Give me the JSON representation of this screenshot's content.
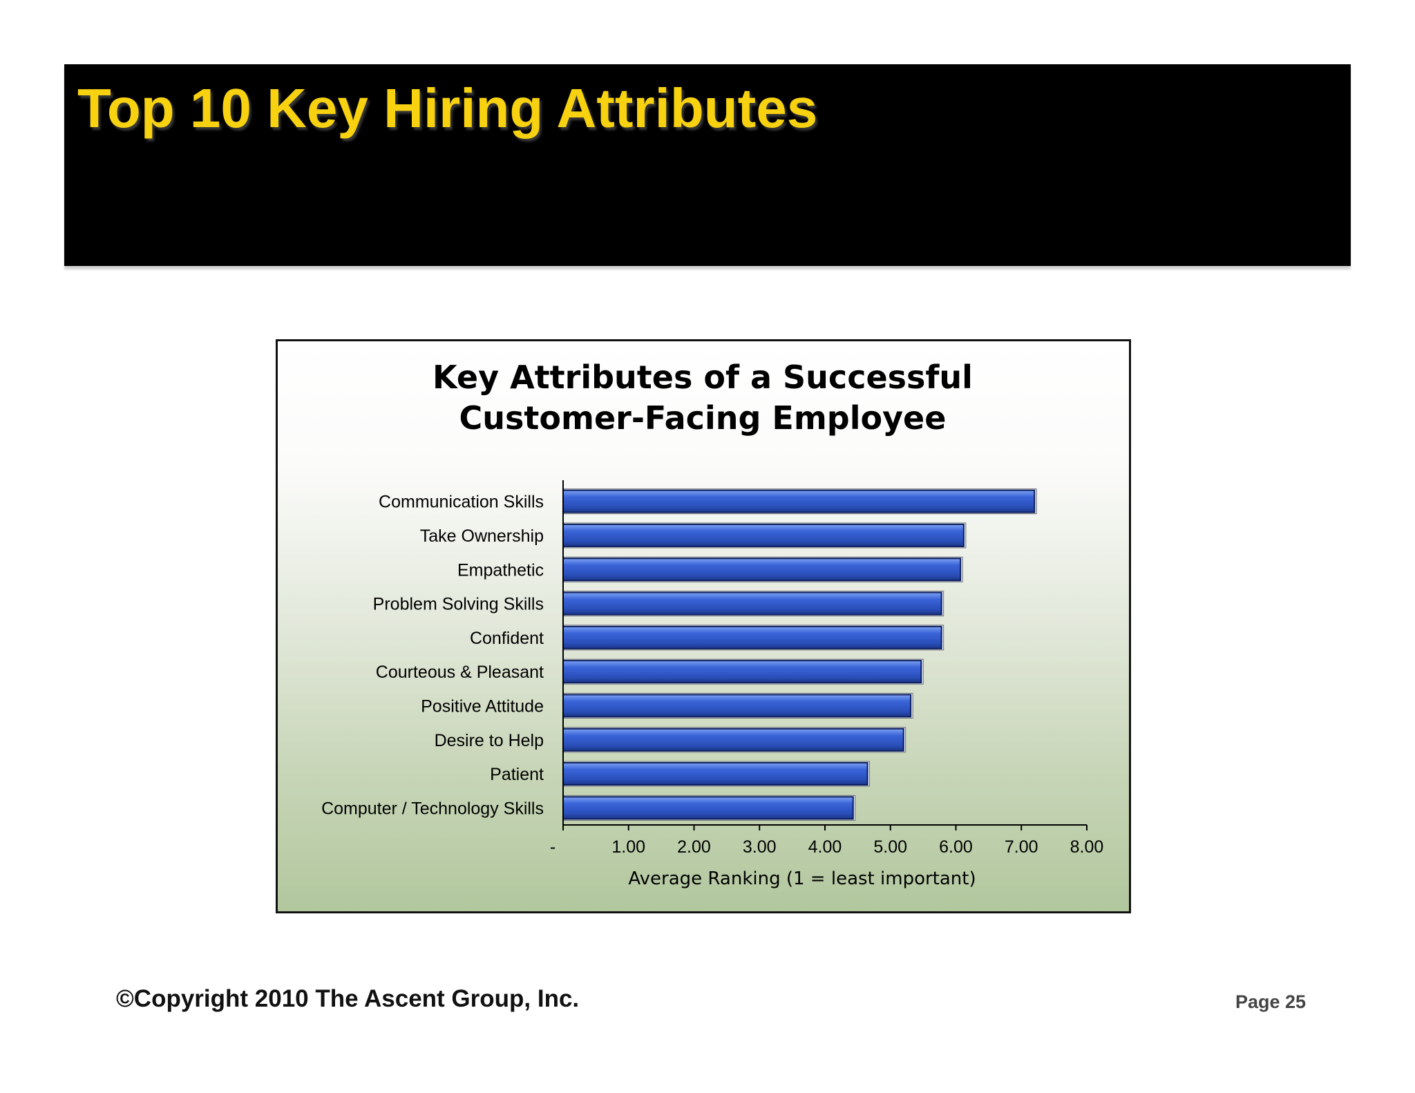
{
  "slide": {
    "title": "Top 10 Key Hiring Attributes",
    "copyright": "©Copyright 2010 The Ascent Group, Inc.",
    "page": "Page 25",
    "colors": {
      "banner": "#000000",
      "title": "#f8d210",
      "bar": "#3a64d8",
      "bar_edge": "#0d1f5c"
    }
  },
  "chart_data": {
    "type": "bar",
    "orientation": "horizontal",
    "title": "Key Attributes of a Successful Customer-Facing Employee",
    "title_lines": [
      "Key Attributes of a Successful",
      "Customer-Facing Employee"
    ],
    "categories": [
      "Communication Skills",
      "Take Ownership",
      "Empathetic",
      "Problem Solving Skills",
      "Confident",
      "Courteous & Pleasant",
      "Positive Attitude",
      "Desire to Help",
      "Patient",
      "Computer / Technology Skills"
    ],
    "values": [
      7.2,
      6.12,
      6.07,
      5.78,
      5.78,
      5.47,
      5.31,
      5.2,
      4.65,
      4.43
    ],
    "xlabel": "Average Ranking (1 = least important)",
    "ylabel": "",
    "xlim": [
      0,
      8
    ],
    "xticks": [
      0,
      1,
      2,
      3,
      4,
      5,
      6,
      7,
      8
    ],
    "xtick_labels": [
      "-",
      "1.00",
      "2.00",
      "3.00",
      "4.00",
      "5.00",
      "6.00",
      "7.00",
      "8.00"
    ],
    "grid": false,
    "legend": "none"
  }
}
